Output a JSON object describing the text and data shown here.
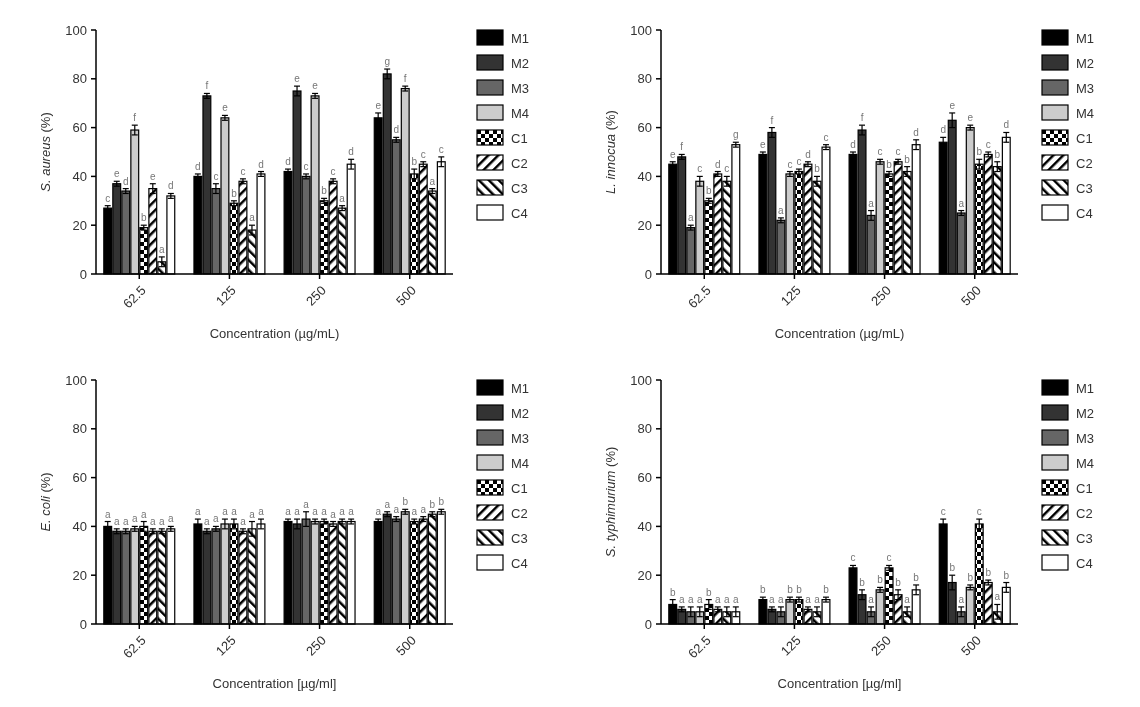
{
  "chart_data": [
    {
      "type": "bar",
      "xlabel": "Concentration (µg/mL)",
      "ylabel": "S. aureus (%)",
      "categories": [
        "62.5",
        "125",
        "250",
        "500"
      ],
      "ylim": [
        0,
        100
      ],
      "yticks": [
        0,
        20,
        40,
        60,
        80,
        100
      ],
      "legend": "right",
      "series": [
        {
          "name": "M1",
          "color": "#000000",
          "values": [
            27,
            40,
            42,
            64
          ],
          "errors": [
            1,
            1,
            1,
            2
          ],
          "value_labels": [
            "c",
            "d",
            "d",
            "e"
          ]
        },
        {
          "name": "M2",
          "color": "#333333",
          "values": [
            37,
            73,
            75,
            82
          ],
          "errors": [
            1,
            1,
            2,
            2
          ],
          "value_labels": [
            "e",
            "f",
            "e",
            "g"
          ]
        },
        {
          "name": "M3",
          "color": "#666666",
          "values": [
            34,
            35,
            40,
            55
          ],
          "errors": [
            1,
            2,
            1,
            1
          ],
          "value_labels": [
            "d",
            "c",
            "c",
            "d"
          ]
        },
        {
          "name": "M4",
          "color": "#cccccc",
          "values": [
            59,
            64,
            73,
            76
          ],
          "errors": [
            2,
            1,
            1,
            1
          ],
          "value_labels": [
            "f",
            "e",
            "e",
            "f"
          ]
        },
        {
          "name": "C1",
          "color": "#000000",
          "values": [
            19,
            29,
            30,
            41
          ],
          "errors": [
            1,
            1,
            1,
            2
          ],
          "value_labels": [
            "b",
            "b",
            "b",
            "b"
          ]
        },
        {
          "name": "C2",
          "color": "#000000",
          "values": [
            35,
            38,
            38,
            45
          ],
          "errors": [
            2,
            1,
            1,
            1
          ],
          "value_labels": [
            "e",
            "c",
            "c",
            "c"
          ]
        },
        {
          "name": "C3",
          "color": "#000000",
          "values": [
            5,
            18,
            27,
            34
          ],
          "errors": [
            2,
            2,
            1,
            1
          ],
          "value_labels": [
            "a",
            "a",
            "a",
            "a"
          ]
        },
        {
          "name": "C4",
          "color": "#ffffff",
          "values": [
            32,
            41,
            45,
            46
          ],
          "errors": [
            1,
            1,
            2,
            2
          ],
          "value_labels": [
            "d",
            "d",
            "d",
            "c"
          ]
        }
      ]
    },
    {
      "type": "bar",
      "xlabel": "Concentration (µg/mL)",
      "ylabel": "L. innocua (%)",
      "categories": [
        "62.5",
        "125",
        "250",
        "500"
      ],
      "ylim": [
        0,
        100
      ],
      "yticks": [
        0,
        20,
        40,
        60,
        80,
        100
      ],
      "legend": "right",
      "series": [
        {
          "name": "M1",
          "color": "#000000",
          "values": [
            45,
            49,
            49,
            54
          ],
          "errors": [
            1,
            1,
            1,
            2
          ],
          "value_labels": [
            "e",
            "e",
            "d",
            "d"
          ]
        },
        {
          "name": "M2",
          "color": "#333333",
          "values": [
            48,
            58,
            59,
            63
          ],
          "errors": [
            1,
            2,
            2,
            3
          ],
          "value_labels": [
            "f",
            "f",
            "f",
            "e"
          ]
        },
        {
          "name": "M3",
          "color": "#666666",
          "values": [
            19,
            22,
            24,
            25
          ],
          "errors": [
            1,
            1,
            2,
            1
          ],
          "value_labels": [
            "a",
            "a",
            "a",
            "a"
          ]
        },
        {
          "name": "M4",
          "color": "#cccccc",
          "values": [
            38,
            41,
            46,
            60
          ],
          "errors": [
            2,
            1,
            1,
            1
          ],
          "value_labels": [
            "c",
            "c",
            "c",
            "e"
          ]
        },
        {
          "name": "C1",
          "color": "#000000",
          "values": [
            30,
            42,
            41,
            45
          ],
          "errors": [
            1,
            1,
            1,
            2
          ],
          "value_labels": [
            "b",
            "c",
            "b",
            "b"
          ]
        },
        {
          "name": "C2",
          "color": "#000000",
          "values": [
            41,
            45,
            46,
            49
          ],
          "errors": [
            1,
            1,
            1,
            1
          ],
          "value_labels": [
            "d",
            "d",
            "c",
            "c"
          ]
        },
        {
          "name": "C3",
          "color": "#000000",
          "values": [
            38,
            38,
            42,
            44
          ],
          "errors": [
            2,
            2,
            2,
            2
          ],
          "value_labels": [
            "c",
            "b",
            "b",
            "b"
          ]
        },
        {
          "name": "C4",
          "color": "#ffffff",
          "values": [
            53,
            52,
            53,
            56
          ],
          "errors": [
            1,
            1,
            2,
            2
          ],
          "value_labels": [
            "g",
            "c",
            "d",
            "d"
          ]
        }
      ]
    },
    {
      "type": "bar",
      "xlabel": "Concentration [µg/ml]",
      "ylabel": "E. coli (%)",
      "categories": [
        "62.5",
        "125",
        "250",
        "500"
      ],
      "ylim": [
        0,
        100
      ],
      "yticks": [
        0,
        20,
        40,
        60,
        80,
        100
      ],
      "legend": "right",
      "series": [
        {
          "name": "M1",
          "color": "#000000",
          "values": [
            40,
            41,
            42,
            42
          ],
          "errors": [
            2,
            2,
            1,
            1
          ],
          "value_labels": [
            "a",
            "a",
            "a",
            "a"
          ]
        },
        {
          "name": "M2",
          "color": "#333333",
          "values": [
            38,
            38,
            41,
            45
          ],
          "errors": [
            1,
            1,
            2,
            1
          ],
          "value_labels": [
            "a",
            "a",
            "a",
            "a"
          ]
        },
        {
          "name": "M3",
          "color": "#666666",
          "values": [
            38,
            39,
            43,
            43
          ],
          "errors": [
            1,
            1,
            3,
            1
          ],
          "value_labels": [
            "a",
            "a",
            "a",
            "a"
          ]
        },
        {
          "name": "M4",
          "color": "#cccccc",
          "values": [
            39,
            41,
            42,
            46
          ],
          "errors": [
            1,
            2,
            1,
            1
          ],
          "value_labels": [
            "a",
            "a",
            "a",
            "b"
          ]
        },
        {
          "name": "C1",
          "color": "#000000",
          "values": [
            40,
            41,
            42,
            42
          ],
          "errors": [
            2,
            2,
            1,
            1
          ],
          "value_labels": [
            "a",
            "a",
            "a",
            "a"
          ]
        },
        {
          "name": "C2",
          "color": "#000000",
          "values": [
            38,
            38,
            41,
            43
          ],
          "errors": [
            1,
            1,
            1,
            1
          ],
          "value_labels": [
            "a",
            "a",
            "a",
            "a"
          ]
        },
        {
          "name": "C3",
          "color": "#000000",
          "values": [
            38,
            39,
            42,
            45
          ],
          "errors": [
            1,
            3,
            1,
            1
          ],
          "value_labels": [
            "a",
            "a",
            "a",
            "b"
          ]
        },
        {
          "name": "C4",
          "color": "#ffffff",
          "values": [
            39,
            41,
            42,
            46
          ],
          "errors": [
            1,
            2,
            1,
            1
          ],
          "value_labels": [
            "a",
            "a",
            "a",
            "b"
          ]
        }
      ]
    },
    {
      "type": "bar",
      "xlabel": "Concentration [µg/ml]",
      "ylabel": "S. typhimurium (%)",
      "categories": [
        "62.5",
        "125",
        "250",
        "500"
      ],
      "ylim": [
        0,
        100
      ],
      "yticks": [
        0,
        20,
        40,
        60,
        80,
        100
      ],
      "legend": "right",
      "series": [
        {
          "name": "M1",
          "color": "#000000",
          "values": [
            8,
            10,
            23,
            41
          ],
          "errors": [
            2,
            1,
            1,
            2
          ],
          "value_labels": [
            "b",
            "b",
            "c",
            "c"
          ]
        },
        {
          "name": "M2",
          "color": "#333333",
          "values": [
            6,
            6,
            12,
            17
          ],
          "errors": [
            1,
            1,
            2,
            3
          ],
          "value_labels": [
            "a",
            "a",
            "b",
            "b"
          ]
        },
        {
          "name": "M3",
          "color": "#666666",
          "values": [
            5,
            5,
            5,
            5
          ],
          "errors": [
            2,
            2,
            2,
            2
          ],
          "value_labels": [
            "a",
            "a",
            "a",
            "a"
          ]
        },
        {
          "name": "M4",
          "color": "#cccccc",
          "values": [
            5,
            10,
            14,
            15
          ],
          "errors": [
            2,
            1,
            1,
            1
          ],
          "value_labels": [
            "a",
            "b",
            "b",
            "b"
          ]
        },
        {
          "name": "C1",
          "color": "#000000",
          "values": [
            8,
            10,
            23,
            41
          ],
          "errors": [
            2,
            1,
            1,
            2
          ],
          "value_labels": [
            "b",
            "b",
            "c",
            "c"
          ]
        },
        {
          "name": "C2",
          "color": "#000000",
          "values": [
            6,
            6,
            12,
            17
          ],
          "errors": [
            1,
            1,
            2,
            1
          ],
          "value_labels": [
            "a",
            "a",
            "b",
            "b"
          ]
        },
        {
          "name": "C3",
          "color": "#000000",
          "values": [
            5,
            5,
            5,
            5
          ],
          "errors": [
            2,
            2,
            2,
            3
          ],
          "value_labels": [
            "a",
            "a",
            "a",
            "a"
          ]
        },
        {
          "name": "C4",
          "color": "#ffffff",
          "values": [
            5,
            10,
            14,
            15
          ],
          "errors": [
            2,
            1,
            2,
            2
          ],
          "value_labels": [
            "a",
            "b",
            "b",
            "b"
          ]
        }
      ]
    }
  ]
}
